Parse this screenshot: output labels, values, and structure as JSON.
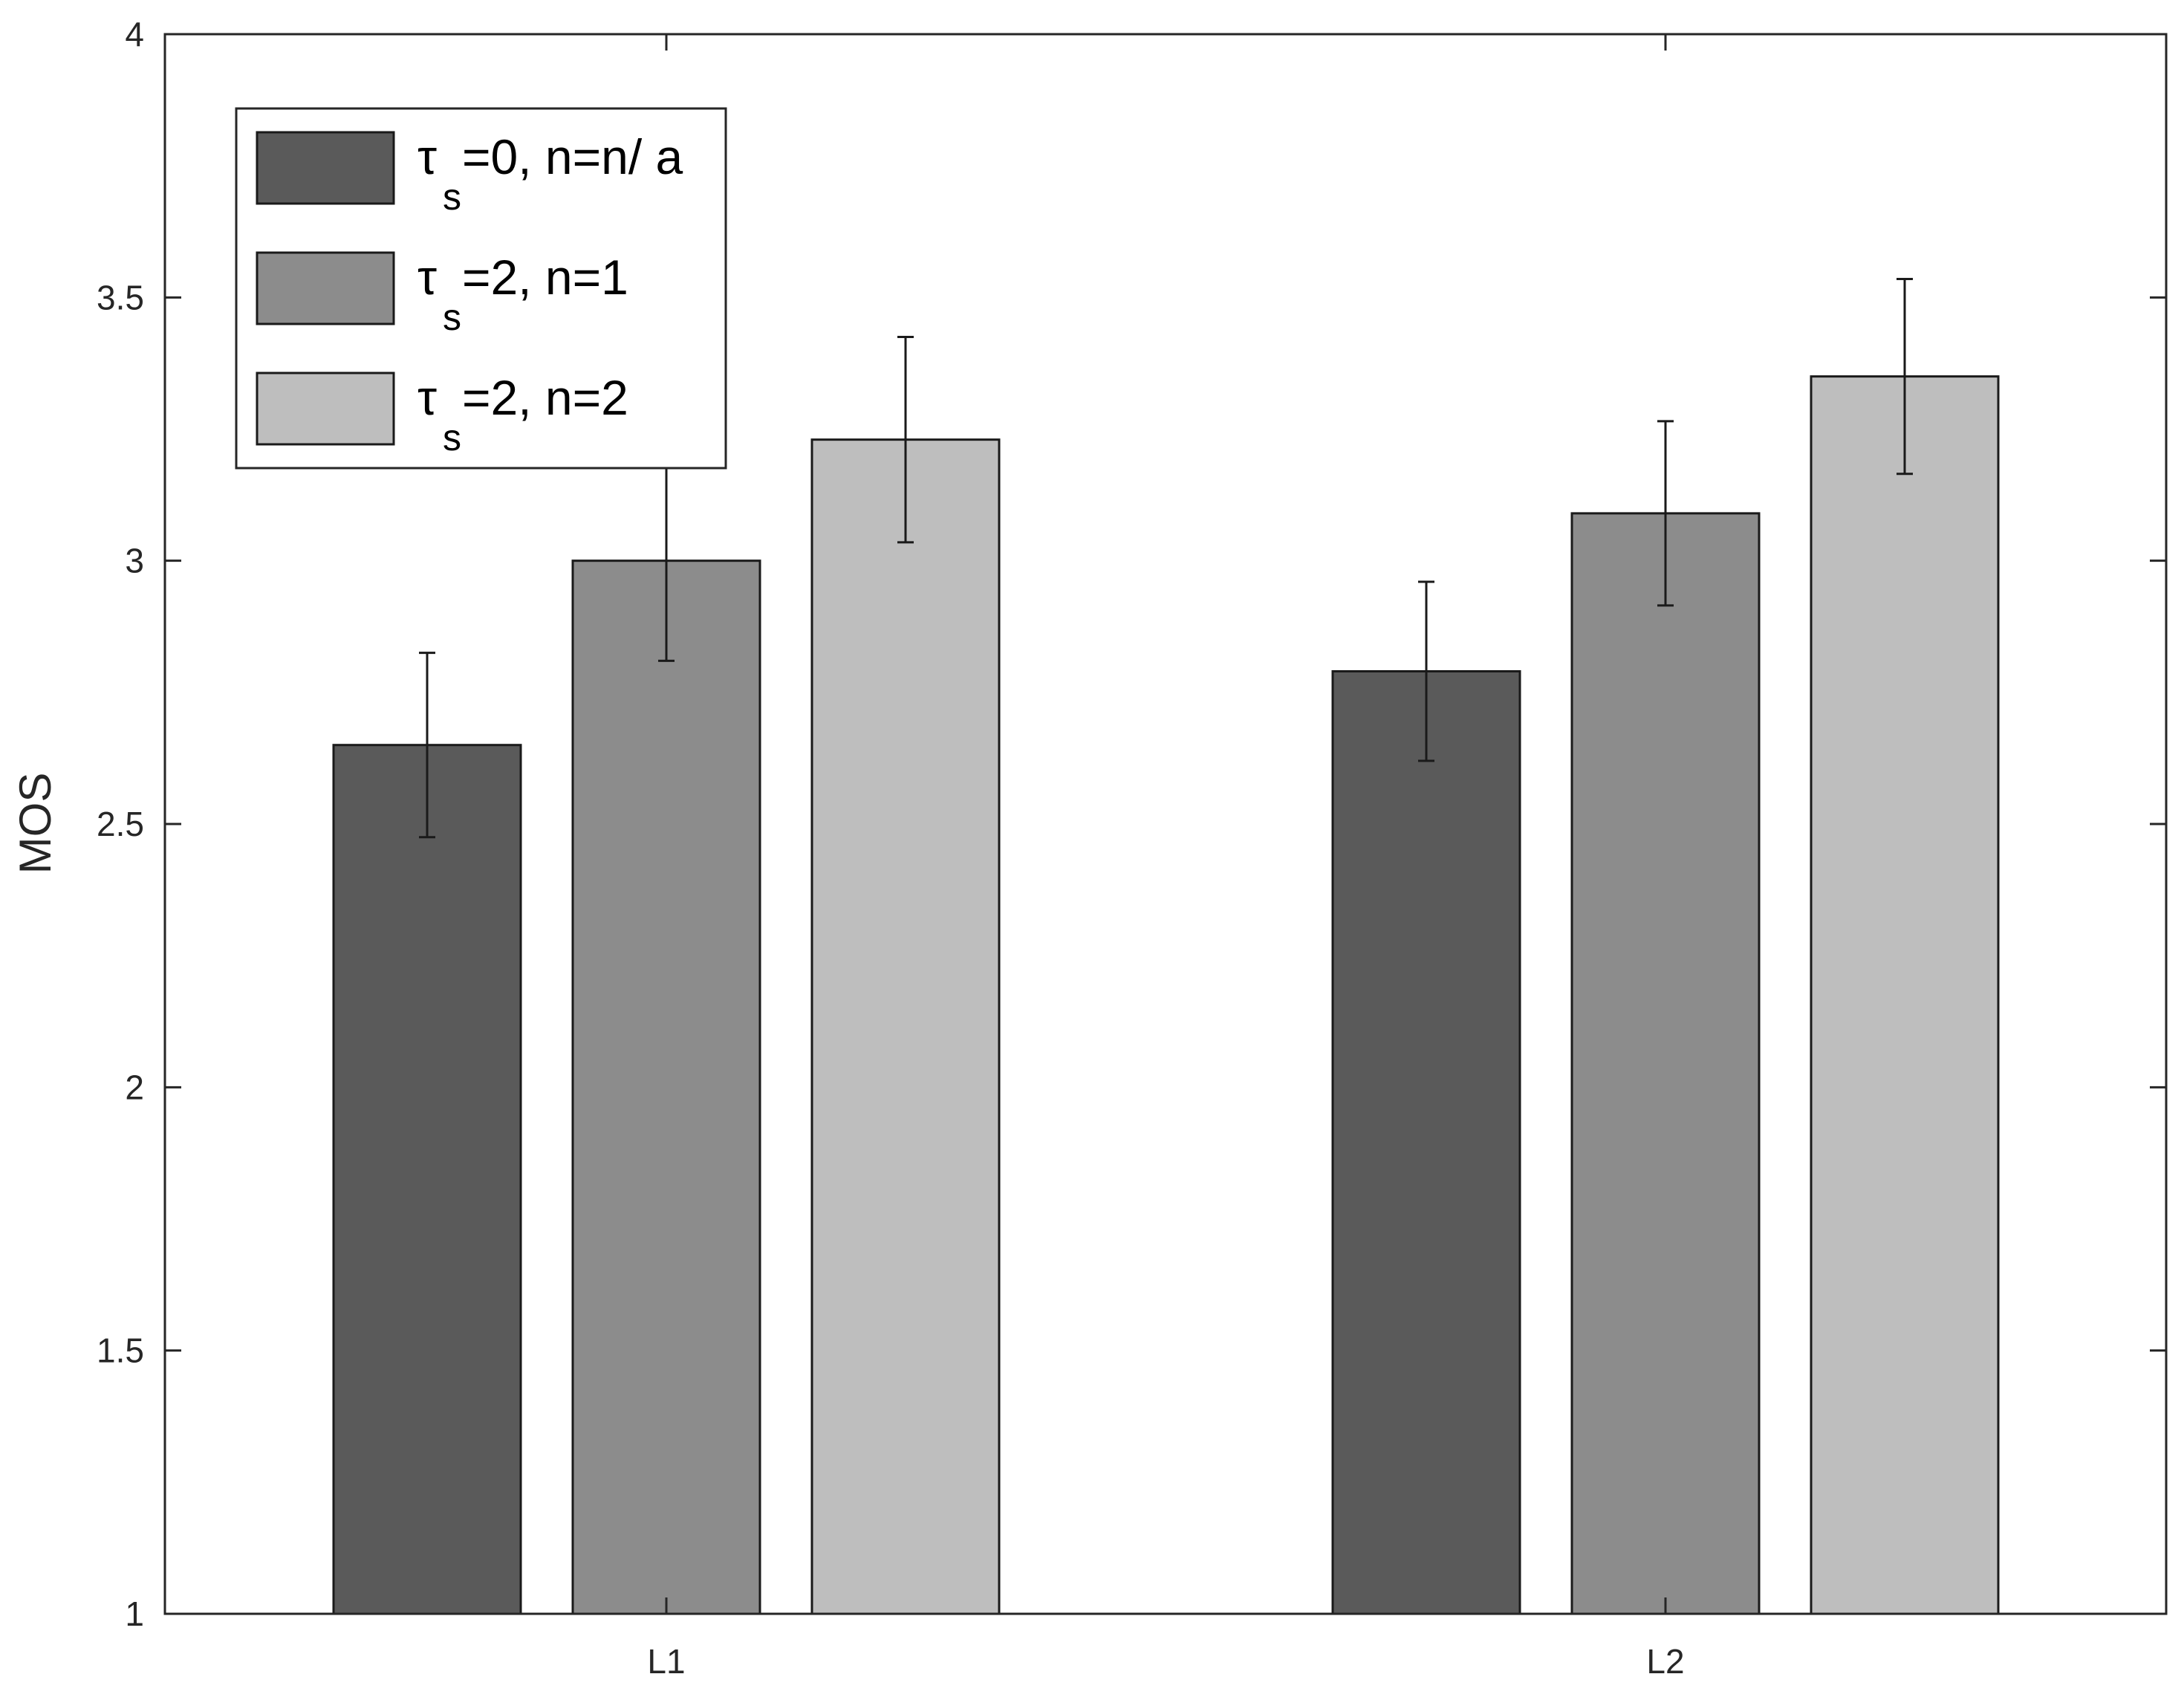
{
  "chart_data": {
    "type": "bar",
    "title": "",
    "xlabel": "",
    "ylabel": "MOS",
    "ylim": [
      1,
      4
    ],
    "yticks": [
      "1",
      "1.5",
      "2",
      "2.5",
      "3",
      "3.5",
      "4"
    ],
    "categories": [
      "L1",
      "L2"
    ],
    "grid": false,
    "legend_position": "top-left",
    "series": [
      {
        "name": "τs=0, n=n/ a",
        "legend_symbol": "τ",
        "legend_subscript": "s",
        "legend_suffix": "=0, n=n/ a",
        "color": "#5a5a5a",
        "values": [
          2.65,
          2.79
        ],
        "errors": [
          0.175,
          0.17
        ]
      },
      {
        "name": "τs=2, n=1",
        "legend_symbol": "τ",
        "legend_subscript": "s",
        "legend_suffix": "=2, n=1",
        "color": "#8c8c8c",
        "values": [
          3.0,
          3.09
        ],
        "errors": [
          0.19,
          0.175
        ]
      },
      {
        "name": "τs=2, n=2",
        "legend_symbol": "τ",
        "legend_subscript": "s",
        "legend_suffix": "=2, n=2",
        "color": "#bebebe",
        "values": [
          3.23,
          3.35
        ],
        "errors": [
          0.195,
          0.185
        ]
      }
    ]
  }
}
